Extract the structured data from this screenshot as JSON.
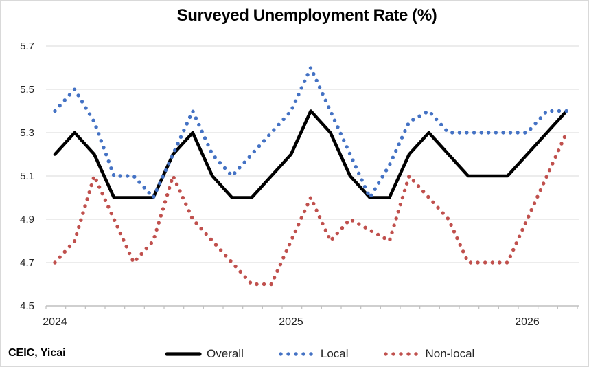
{
  "title": "Surveyed Unemployment Rate (%)",
  "source": "CEIC, Yicai",
  "chart_data": {
    "type": "line",
    "title": "Surveyed Unemployment Rate (%)",
    "xlabel": "",
    "ylabel": "",
    "ylim": [
      4.5,
      5.7
    ],
    "y_ticks": [
      5.7,
      5.5,
      5.3,
      5.1,
      4.9,
      4.7,
      4.5
    ],
    "grid": true,
    "legend_position": "bottom",
    "x_year_labels": [
      {
        "label": "2024",
        "month_index": 0
      },
      {
        "label": "2025",
        "month_index": 12
      },
      {
        "label": "2026",
        "month_index": 24
      }
    ],
    "months": [
      "2024-01",
      "2024-02",
      "2024-03",
      "2024-04",
      "2024-05",
      "2024-06",
      "2024-07",
      "2024-08",
      "2024-09",
      "2024-10",
      "2024-11",
      "2024-12",
      "2025-01",
      "2025-02",
      "2025-03",
      "2025-04",
      "2025-05",
      "2025-06",
      "2025-07",
      "2025-08",
      "2025-09",
      "2025-10",
      "2025-11",
      "2025-12",
      "2026-01",
      "2026-02",
      "2026-03"
    ],
    "series": [
      {
        "name": "Overall",
        "color": "#000000",
        "style": "solid",
        "values": [
          5.2,
          5.3,
          5.2,
          5.0,
          5.0,
          5.0,
          5.2,
          5.3,
          5.1,
          5.0,
          5.0,
          5.1,
          5.2,
          5.4,
          5.3,
          5.1,
          5.0,
          5.0,
          5.2,
          5.3,
          5.2,
          5.1,
          5.1,
          5.1,
          5.2,
          5.3,
          5.4
        ]
      },
      {
        "name": "Local",
        "color": "#4472c4",
        "style": "dotted",
        "values": [
          5.4,
          5.5,
          5.35,
          5.1,
          5.1,
          5.0,
          5.2,
          5.4,
          5.2,
          5.1,
          5.2,
          5.3,
          5.4,
          5.6,
          5.4,
          5.2,
          5.0,
          5.15,
          5.35,
          5.4,
          5.3,
          5.3,
          5.3,
          5.3,
          5.3,
          5.4,
          5.4
        ]
      },
      {
        "name": "Non-local",
        "color": "#c0504d",
        "style": "dotted",
        "values": [
          4.7,
          4.8,
          5.1,
          4.9,
          4.7,
          4.8,
          5.1,
          4.9,
          4.8,
          4.7,
          4.6,
          4.6,
          4.8,
          5.0,
          4.8,
          4.9,
          4.85,
          4.8,
          5.1,
          5.0,
          4.9,
          4.7,
          4.7,
          4.7,
          4.9,
          5.1,
          5.3
        ]
      }
    ]
  },
  "colors": {
    "gridline": "#d9d9d9",
    "axis_line": "#bfbfbf",
    "tick_mark": "#bfbfbf",
    "label_text": "#262626",
    "background": "#ffffff"
  }
}
